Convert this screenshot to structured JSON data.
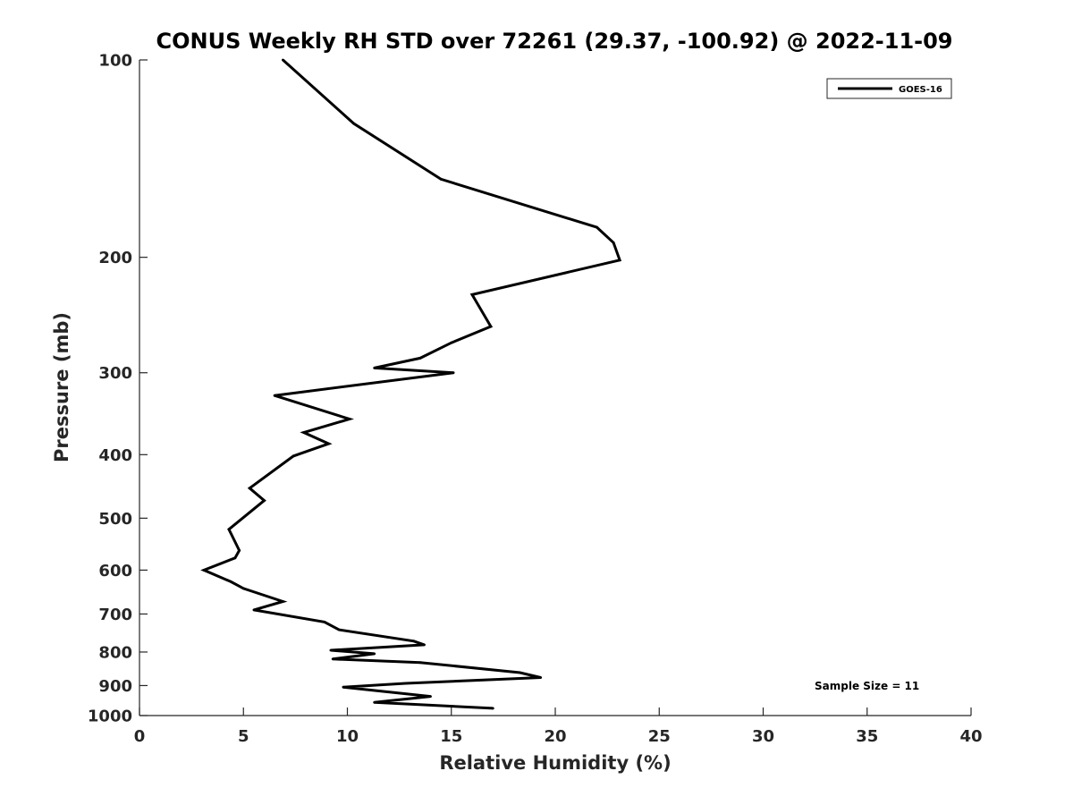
{
  "chart_data": {
    "type": "line",
    "title": "CONUS Weekly RH STD over 72261 (29.37, -100.92) @ 2022-11-09",
    "xlabel": "Relative Humidity (%)",
    "ylabel": "Pressure (mb)",
    "xlim": [
      0,
      40
    ],
    "ylim": [
      100,
      1000
    ],
    "yscale": "log",
    "y_reversed": true,
    "grid": false,
    "x_ticks": [
      0,
      5,
      10,
      15,
      20,
      25,
      30,
      35,
      40
    ],
    "y_ticks": [
      100,
      200,
      300,
      400,
      500,
      600,
      700,
      800,
      900,
      1000
    ],
    "legend_position": "top-right",
    "annotation": "Sample Size = 11",
    "series": [
      {
        "name": "GOES-16",
        "color": "#000000",
        "x": [
          6.9,
          10.3,
          14.5,
          22.0,
          22.8,
          23.1,
          16.0,
          16.9,
          15.0,
          13.5,
          11.3,
          15.1,
          6.5,
          10.1,
          7.9,
          9.1,
          7.4,
          5.3,
          6.0,
          4.3,
          4.8,
          4.6,
          3.1,
          4.4,
          5.0,
          6.9,
          5.5,
          8.9,
          9.6,
          13.2,
          13.7,
          9.2,
          11.3,
          9.3,
          13.5,
          18.3,
          19.3,
          12.8,
          9.8,
          14.0,
          11.3,
          17.0
        ],
        "y": [
          100,
          125,
          152,
          180,
          190,
          202,
          228,
          255,
          270,
          285,
          295,
          300,
          325,
          353,
          370,
          385,
          402,
          450,
          470,
          520,
          560,
          575,
          600,
          625,
          640,
          670,
          690,
          720,
          740,
          770,
          780,
          795,
          805,
          820,
          830,
          860,
          875,
          893,
          905,
          935,
          955,
          975
        ]
      }
    ]
  }
}
